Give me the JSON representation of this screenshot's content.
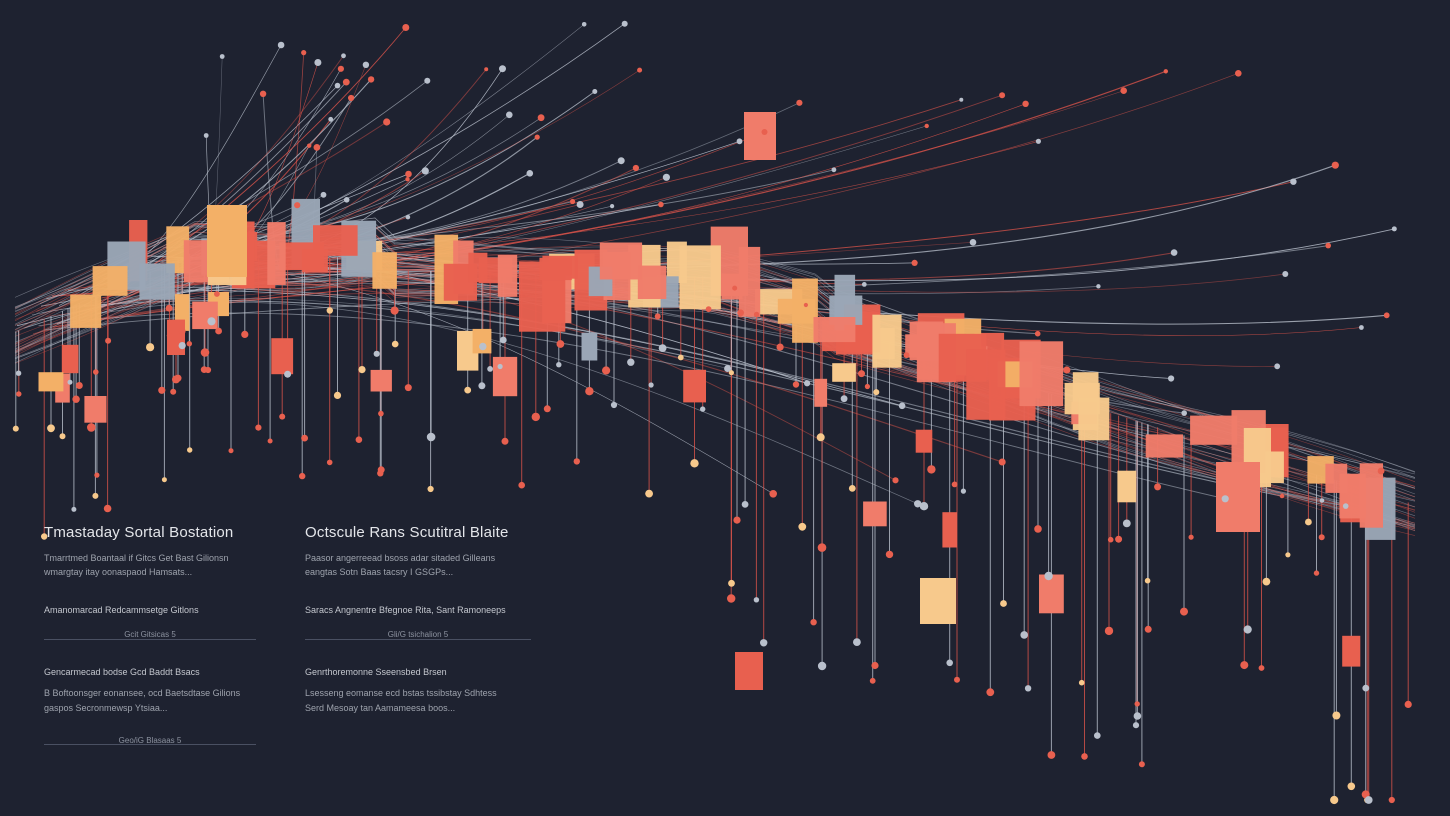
{
  "colors": {
    "background": "#1e2230",
    "red": "#e8604f",
    "coral": "#f07c6a",
    "peach": "#f7c98c",
    "sand": "#f3b067",
    "slate": "#9aa6b6",
    "line_red": "#d9534a",
    "line_grey": "#b9c0cc"
  },
  "panels": [
    {
      "title": "Tmastaday Sortal Bostation",
      "desc_1": "Tmarrtmed Boantaal if Gitcs Get Bast Gilionsn",
      "desc_2": "wmargtay itay oonaspaod Hamsats...",
      "label_1": "Amanomarcad Redcammsetge Gitlons",
      "caption_1": "Gcit Gitsicas 5",
      "label_2": "Gencarmecad bodse Gcd Baddt Bsacs",
      "desc_3": "B Boftoonsger eonansee, ocd Baetsdtase Gilions",
      "desc_4": "gaspos Secronmewsp Ytsiaa...",
      "caption_2": "Geo/iG Blasaas 5"
    },
    {
      "title": "Octscule Rans Scutitral Blaite",
      "desc_1": "Paasor angerreead bsoss adar sitaded Gilleans",
      "desc_2": "eangtas Sotn Baas tacsry I GSGPs...",
      "label_1": "Saracs Angnentre Bfegnoe Rita, Sant Ramoneeps",
      "caption_1": "Gli/G tsichalion 5",
      "label_2": "Genrthoremonne Sseensbed Brsen",
      "desc_3": "Lsesseng eomanse ecd bstas tssibstay Sdhtess",
      "desc_4": "Serd Mesoay tan Aamameesa boos..."
    }
  ]
}
